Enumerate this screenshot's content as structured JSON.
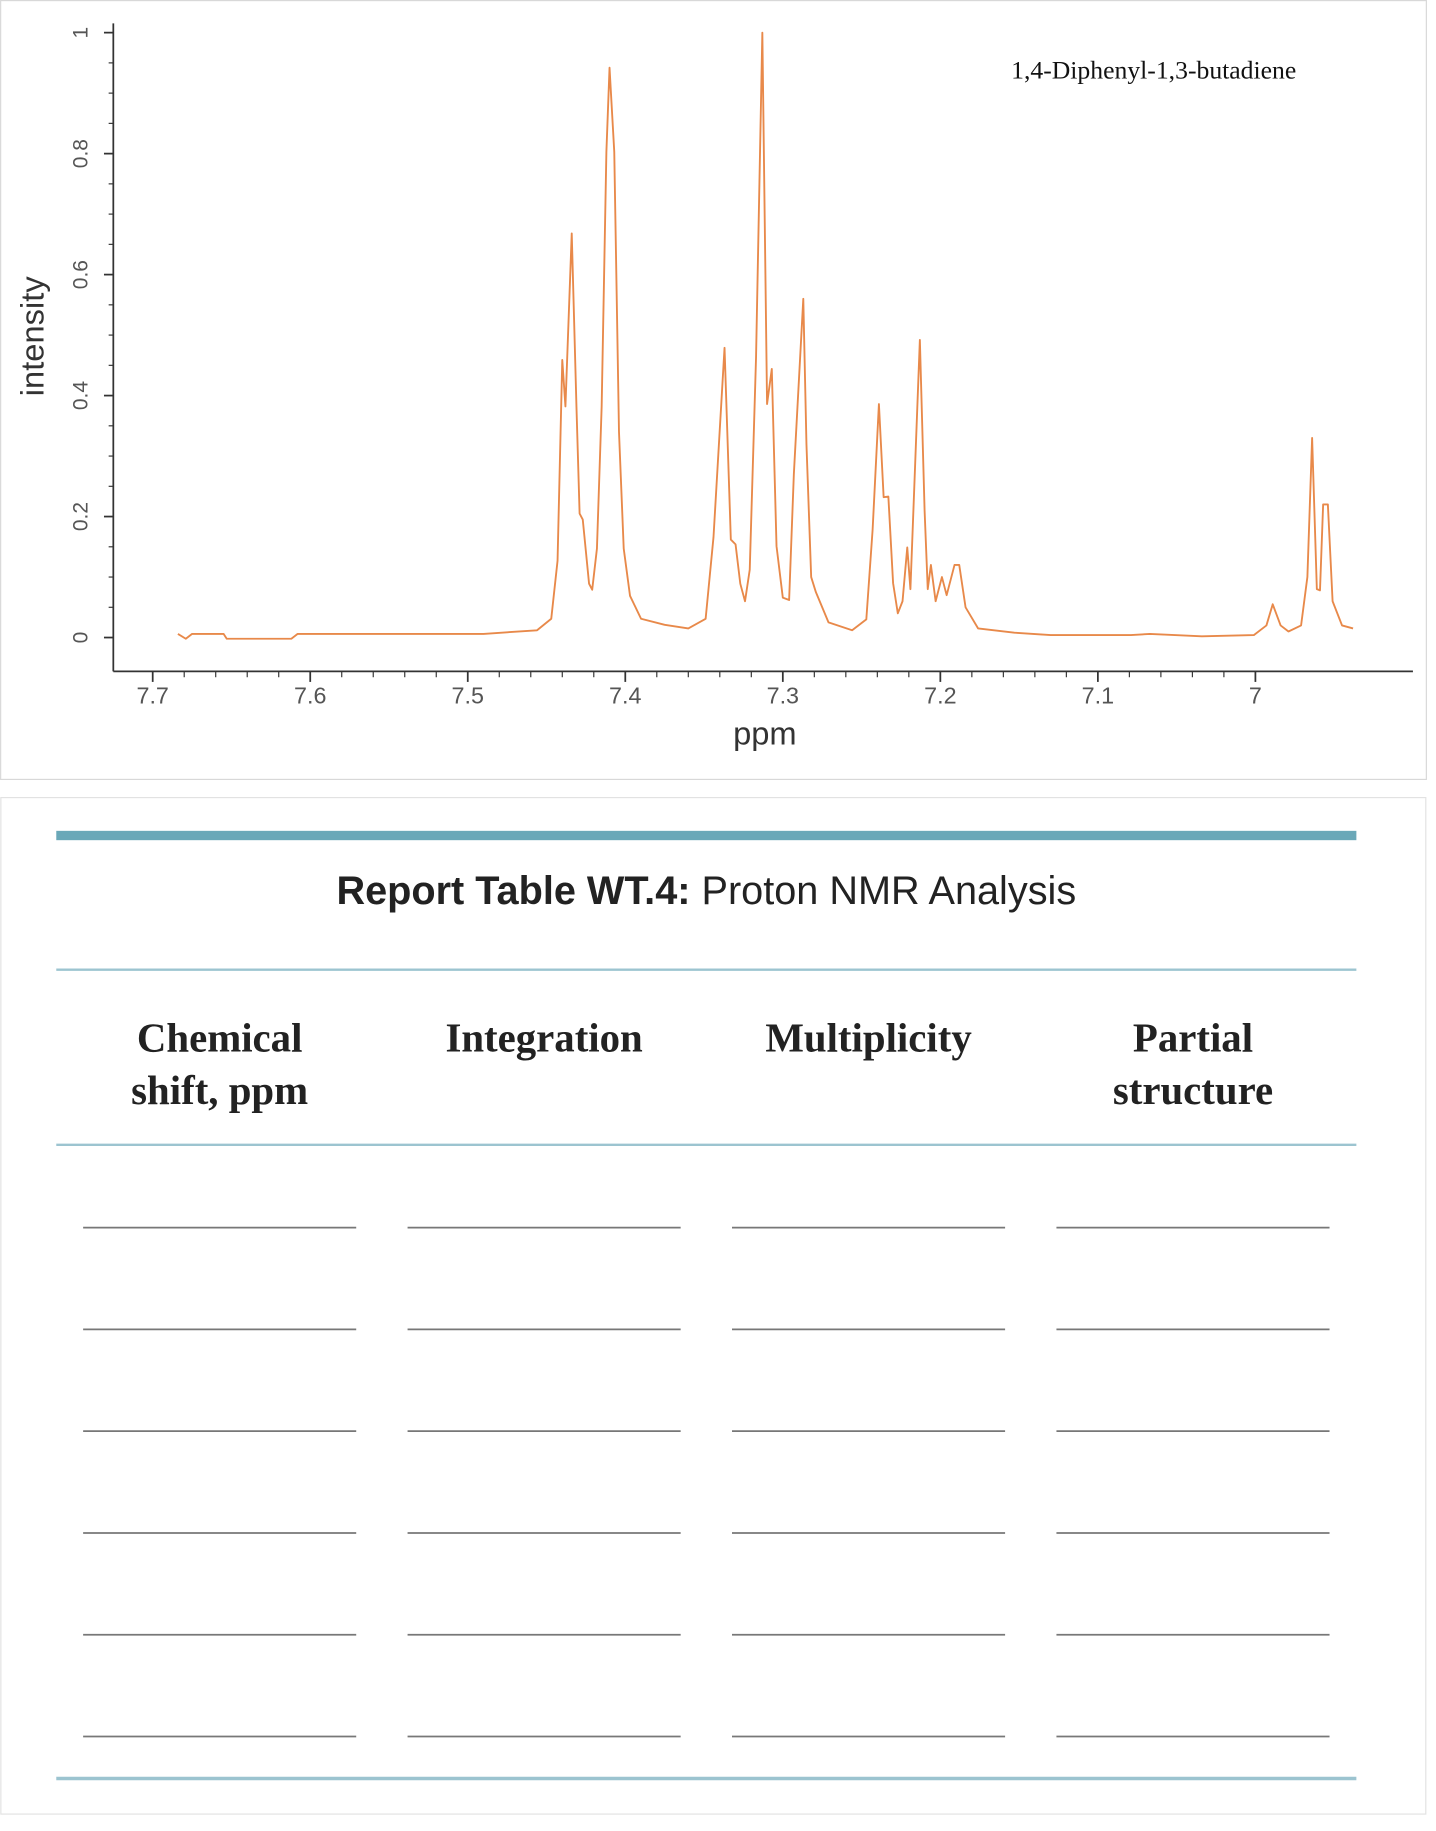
{
  "chart_data": {
    "type": "line",
    "annotation": "1,4-Diphenyl-1,3-butadiene",
    "xlabel": "ppm",
    "ylabel": "intensity",
    "color": "#e8894a",
    "xlim": [
      7.725,
      6.9
    ],
    "ylim": [
      -0.056,
      1.025
    ],
    "xticks": [
      7.7,
      7.6,
      7.5,
      7.4,
      7.3,
      7.2,
      7.1,
      7
    ],
    "yticks": [
      0,
      0.2,
      0.4,
      0.6,
      0.8,
      1
    ],
    "x": [
      7.684,
      7.679,
      7.675,
      7.655,
      7.653,
      7.612,
      7.608,
      7.49,
      7.456,
      7.447,
      7.443,
      7.44,
      7.438,
      7.434,
      7.431,
      7.429,
      7.427,
      7.423,
      7.421,
      7.418,
      7.415,
      7.412,
      7.41,
      7.407,
      7.404,
      7.401,
      7.397,
      7.39,
      7.375,
      7.36,
      7.349,
      7.344,
      7.337,
      7.333,
      7.33,
      7.327,
      7.324,
      7.321,
      7.317,
      7.313,
      7.31,
      7.307,
      7.304,
      7.3,
      7.296,
      7.293,
      7.287,
      7.285,
      7.282,
      7.279,
      7.271,
      7.256,
      7.247,
      7.243,
      7.239,
      7.236,
      7.233,
      7.23,
      7.227,
      7.224,
      7.221,
      7.219,
      7.213,
      7.21,
      7.208,
      7.206,
      7.203,
      7.199,
      7.196,
      7.191,
      7.188,
      7.184,
      7.176,
      7.153,
      7.13,
      7.079,
      7.067,
      7.034,
      7.001,
      6.993,
      6.989,
      6.984,
      6.979,
      6.971,
      6.967,
      6.964,
      6.961,
      6.959,
      6.957,
      6.954,
      6.951,
      6.945,
      6.938
    ],
    "series": [
      {
        "values": [
          0.006,
          -0.002,
          0.006,
          0.006,
          -0.002,
          -0.002,
          0.006,
          0.006,
          0.012,
          0.031,
          0.127,
          0.459,
          0.382,
          0.668,
          0.382,
          0.205,
          0.195,
          0.089,
          0.079,
          0.147,
          0.382,
          0.803,
          0.942,
          0.803,
          0.34,
          0.147,
          0.069,
          0.031,
          0.021,
          0.015,
          0.031,
          0.166,
          0.479,
          0.162,
          0.154,
          0.089,
          0.06,
          0.112,
          0.463,
          1.0,
          0.386,
          0.444,
          0.151,
          0.066,
          0.062,
          0.27,
          0.56,
          0.32,
          0.1,
          0.075,
          0.025,
          0.012,
          0.03,
          0.178,
          0.386,
          0.232,
          0.233,
          0.09,
          0.04,
          0.06,
          0.149,
          0.08,
          0.492,
          0.21,
          0.08,
          0.12,
          0.06,
          0.1,
          0.07,
          0.12,
          0.12,
          0.05,
          0.015,
          0.008,
          0.004,
          0.004,
          0.006,
          0.002,
          0.004,
          0.02,
          0.055,
          0.02,
          0.01,
          0.02,
          0.1,
          0.33,
          0.08,
          0.078,
          0.22,
          0.22,
          0.06,
          0.02,
          0.015
        ]
      }
    ]
  },
  "table": {
    "title_bold": "Report Table WT.4:",
    "title_rest": "Proton NMR Analysis",
    "headers": [
      [
        "Chemical",
        "shift, ppm"
      ],
      [
        "Integration"
      ],
      [
        "Multiplicity"
      ],
      [
        "Partial",
        "structure"
      ]
    ]
  }
}
